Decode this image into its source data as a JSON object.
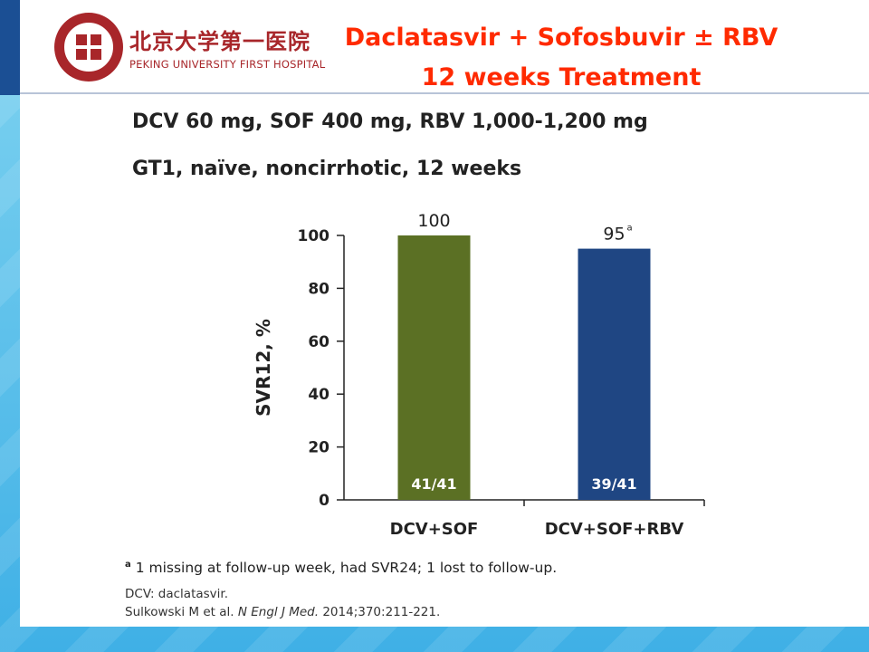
{
  "logo": {
    "chinese_name": "北京大学第一医院",
    "english_name": "PEKING UNIVERSITY FIRST HOSPITAL"
  },
  "title": {
    "line1": "Daclatasvir + Sofosbuvir ± RBV",
    "line2": "12 weeks Treatment"
  },
  "subtitle": {
    "dosing": "DCV 60 mg, SOF 400 mg, RBV 1,000-1,200 mg",
    "population": "GT1, naïve, noncirrhotic, 12 weeks"
  },
  "chart_data": {
    "type": "bar",
    "categories": [
      "DCV+SOF",
      "DCV+SOF+RBV"
    ],
    "values": [
      100,
      95
    ],
    "value_labels": [
      "100",
      "95"
    ],
    "value_superscripts": [
      "",
      "a"
    ],
    "inner_labels": [
      "41/41",
      "39/41"
    ],
    "colors": [
      "#5b7024",
      "#1f4683"
    ],
    "ylabel": "SVR12, %",
    "xlabel": "",
    "ylim": [
      0,
      100
    ],
    "yticks": [
      0,
      20,
      40,
      60,
      80,
      100
    ],
    "grid": false
  },
  "footnotes": {
    "marker": "a",
    "note": "1 missing at follow-up week, had SVR24; 1 lost to follow-up.",
    "abbrev": "DCV: daclatasvir.",
    "ref_authors": "Sulkowski M et al.",
    "ref_journal": "N Engl J Med.",
    "ref_details": "2014;370:211-221."
  }
}
